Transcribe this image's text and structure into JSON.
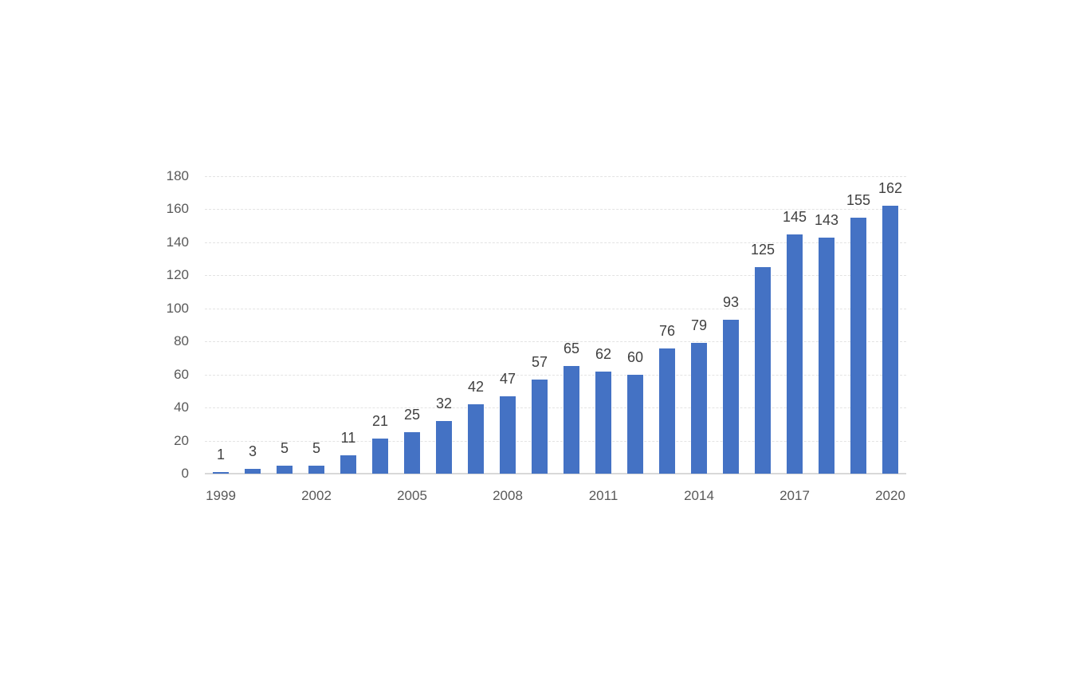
{
  "chart_data": {
    "type": "bar",
    "x": [
      1999,
      2000,
      2001,
      2002,
      2003,
      2004,
      2005,
      2006,
      2007,
      2008,
      2009,
      2010,
      2011,
      2012,
      2013,
      2014,
      2015,
      2016,
      2017,
      2018,
      2019,
      2020
    ],
    "values": [
      1,
      3,
      5,
      5,
      11,
      21,
      25,
      32,
      42,
      47,
      57,
      65,
      62,
      60,
      76,
      79,
      93,
      125,
      145,
      143,
      155,
      162
    ],
    "data_labels": [
      "1",
      "3",
      "5",
      "5",
      "11",
      "21",
      "25",
      "32",
      "42",
      "47",
      "57",
      "65",
      "62",
      "60",
      "76",
      "79",
      "93",
      "125",
      "145",
      "143",
      "155",
      "162"
    ],
    "x_tick_labels": [
      "1999",
      "2002",
      "2005",
      "2008",
      "2011",
      "2014",
      "2017",
      "2020"
    ],
    "x_tick_interval": 3,
    "y_ticks": [
      0,
      20,
      40,
      60,
      80,
      100,
      120,
      140,
      160,
      180
    ],
    "ylim": [
      0,
      180
    ],
    "title": "",
    "xlabel": "",
    "ylabel": "",
    "legend": null,
    "grid": "horizontal-dashed",
    "colors": {
      "bar": "#4472c4",
      "data_label": "#404040",
      "axis_label": "#595959",
      "gridline": "#e3e3e3",
      "axis_line": "#d8d8d8",
      "background": "#ffffff"
    }
  }
}
